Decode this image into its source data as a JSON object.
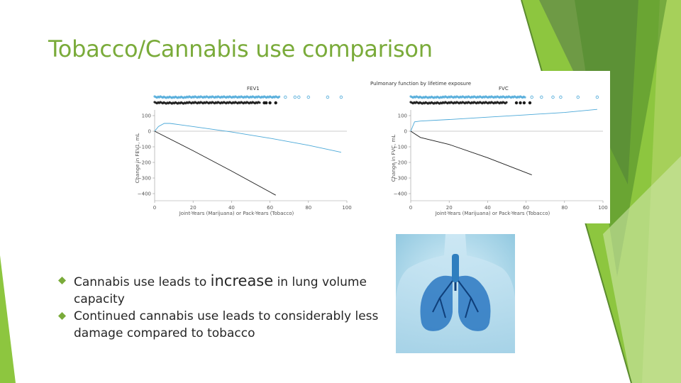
{
  "slide": {
    "title": "Tobacco/Cannabis use comparison",
    "bullets": [
      {
        "before": "Cannabis use leads to ",
        "emphasis": "increase",
        "after": " in lung volume capacity"
      },
      {
        "text": "Continued cannabis use leads to considerably less damage compared to tobacco"
      }
    ],
    "bullet_icon": "diamond-bullet-icon",
    "image_icon": "lungs-illustration-icon"
  },
  "colors": {
    "title": "#7aab3a",
    "accent_green": "#8dc63f",
    "dark_green": "#4e8a2a",
    "bullet_mark": "#7aab3a",
    "marijuana_line": "#4aa8d8",
    "tobacco_line": "#1a1a1a"
  },
  "chart_data": [
    {
      "type": "line",
      "figure_title": "Pulmonary function by lifetime exposure",
      "title": "FEV1",
      "xlabel": "Joint-Years (Marijuana) or Pack-Years (Tobacco)",
      "ylabel": "Change in FEV1, mL",
      "xlim": [
        0,
        100
      ],
      "ylim": [
        -400,
        100
      ],
      "xticks": [
        0,
        20,
        40,
        60,
        80,
        100
      ],
      "yticks": [
        100,
        0,
        -100,
        -200,
        -300,
        -400
      ],
      "series": [
        {
          "key": "marijuana",
          "color": "#4aa8d8",
          "x": [
            0,
            2,
            5,
            8,
            20,
            40,
            60,
            80,
            97
          ],
          "y": [
            0,
            30,
            50,
            50,
            30,
            -5,
            -45,
            -90,
            -135
          ]
        },
        {
          "key": "tobacco",
          "color": "#1a1a1a",
          "x": [
            0,
            20,
            40,
            63
          ],
          "y": [
            0,
            -125,
            -255,
            -410
          ]
        }
      ],
      "rug": [
        {
          "key": "marijuana",
          "color": "#4aa8d8",
          "y_offset": 1,
          "x_max": 65,
          "extra": [
            68,
            73,
            75,
            80,
            90,
            97
          ]
        },
        {
          "key": "tobacco",
          "color": "#1a1a1a",
          "y_offset": 0,
          "x_max": 55,
          "extra": [
            57,
            58,
            60,
            63
          ]
        }
      ]
    },
    {
      "type": "line",
      "title": "FVC",
      "xlabel": "Joint-Years (Marijuana) or Pack-Years (Tobacco)",
      "ylabel": "Change in FVC, mL",
      "xlim": [
        0,
        100
      ],
      "ylim": [
        -400,
        100
      ],
      "xticks": [
        0,
        20,
        40,
        60,
        80,
        100
      ],
      "yticks": [
        100,
        0,
        -100,
        -200,
        -300,
        -400
      ],
      "series": [
        {
          "key": "marijuana",
          "color": "#4aa8d8",
          "x": [
            0,
            2,
            5,
            20,
            40,
            60,
            80,
            97
          ],
          "y": [
            0,
            60,
            65,
            75,
            90,
            105,
            120,
            140
          ]
        },
        {
          "key": "tobacco",
          "color": "#1a1a1a",
          "x": [
            0,
            5,
            20,
            40,
            63
          ],
          "y": [
            0,
            -40,
            -85,
            -170,
            -280
          ]
        }
      ],
      "rug": [
        {
          "key": "marijuana",
          "color": "#4aa8d8",
          "y_offset": 1,
          "x_max": 60,
          "extra": [
            63,
            68,
            74,
            78,
            87,
            97
          ]
        },
        {
          "key": "tobacco",
          "color": "#1a1a1a",
          "y_offset": 0,
          "x_max": 50,
          "extra": [
            55,
            57,
            59,
            62
          ]
        }
      ]
    }
  ]
}
